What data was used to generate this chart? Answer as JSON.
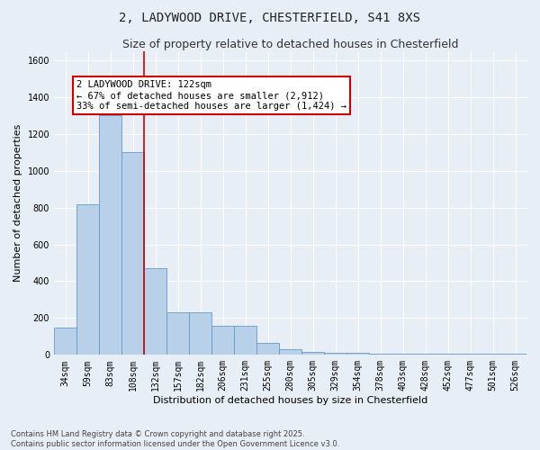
{
  "title_line1": "2, LADYWOOD DRIVE, CHESTERFIELD, S41 8XS",
  "title_line2": "Size of property relative to detached houses in Chesterfield",
  "xlabel": "Distribution of detached houses by size in Chesterfield",
  "ylabel": "Number of detached properties",
  "categories": [
    "34sqm",
    "59sqm",
    "83sqm",
    "108sqm",
    "132sqm",
    "157sqm",
    "182sqm",
    "206sqm",
    "231sqm",
    "255sqm",
    "280sqm",
    "305sqm",
    "329sqm",
    "354sqm",
    "378sqm",
    "403sqm",
    "428sqm",
    "452sqm",
    "477sqm",
    "501sqm",
    "526sqm"
  ],
  "values": [
    150,
    820,
    1300,
    1100,
    470,
    230,
    230,
    160,
    160,
    65,
    30,
    15,
    10,
    10,
    5,
    5,
    5,
    5,
    5,
    5,
    5
  ],
  "bar_color": "#b8d0e8",
  "bar_edge_color": "#6699cc",
  "background_color": "#e8eef5",
  "grid_color": "#ffffff",
  "annotation_text": "2 LADYWOOD DRIVE: 122sqm\n← 67% of detached houses are smaller (2,912)\n33% of semi-detached houses are larger (1,424) →",
  "annotation_box_color": "#ffffff",
  "annotation_box_edge": "#cc0000",
  "vline_x": 3.5,
  "vline_color": "#cc0000",
  "ylim": [
    0,
    1650
  ],
  "yticks": [
    0,
    200,
    400,
    600,
    800,
    1000,
    1200,
    1400,
    1600
  ],
  "footer_text": "Contains HM Land Registry data © Crown copyright and database right 2025.\nContains public sector information licensed under the Open Government Licence v3.0.",
  "title_fontsize": 10,
  "subtitle_fontsize": 9,
  "axis_label_fontsize": 8,
  "tick_fontsize": 7,
  "annotation_fontsize": 7.5
}
